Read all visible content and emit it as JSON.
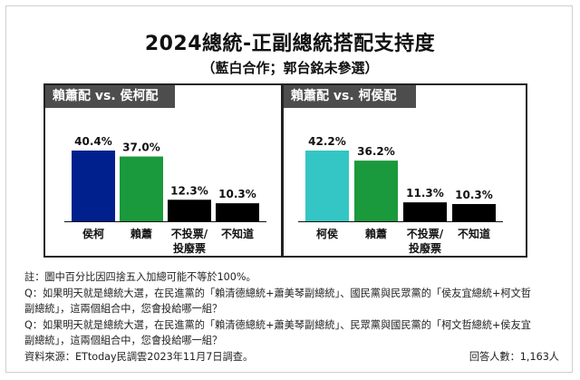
{
  "title": "2024總統-正副總統搭配支持度",
  "subtitle": "（藍白合作；郭台銘未參選）",
  "colors": {
    "lai": "#00208e",
    "hou": "#1a9a3c",
    "ko": "#33c6c4",
    "other": "#000000"
  },
  "chart_data": [
    {
      "type": "bar",
      "title": "賴蕭配 vs. 侯柯配",
      "categories": [
        "侯柯",
        "賴蕭",
        "不投票/\n投廢票",
        "不知道"
      ],
      "values": [
        40.4,
        37.0,
        12.3,
        10.3
      ],
      "value_labels": [
        "40.4%",
        "37.0%",
        "12.3%",
        "10.3%"
      ],
      "bar_colors": [
        "#00208e",
        "#1a9a3c",
        "#000000",
        "#000000"
      ],
      "ylim": [
        0,
        50
      ]
    },
    {
      "type": "bar",
      "title": "賴蕭配 vs. 柯侯配",
      "categories": [
        "柯侯",
        "賴蕭",
        "不投票/\n投廢票",
        "不知道"
      ],
      "values": [
        42.2,
        36.2,
        11.3,
        10.3
      ],
      "value_labels": [
        "42.2%",
        "36.2%",
        "11.3%",
        "10.3%"
      ],
      "bar_colors": [
        "#33c6c4",
        "#1a9a3c",
        "#000000",
        "#000000"
      ],
      "ylim": [
        0,
        50
      ]
    }
  ],
  "footnotes": {
    "note": "註：圖中百分比因四捨五入加總可能不等於100%。",
    "q1_line1": "Q：如果明天就是總統大選，在民進黨的「賴清德總統+蕭美琴副總統」、國民黨與民眾黨的「侯友宜總統+柯文哲",
    "q1_line2": "副總統」，這兩個組合中，您會投給哪一組？",
    "q2_line1": "Q：如果明天就是總統大選，在民進黨的「賴清德總統+蕭美琴副總統」、民眾黨與國民黨的「柯文哲總統+侯友宜",
    "q2_line2": "副總統」，這兩個組合中，您會投給哪一組？",
    "source": "資料來源：ETtoday民調雲2023年11月7日調查。",
    "respondents": "回答人數：1,163人"
  }
}
